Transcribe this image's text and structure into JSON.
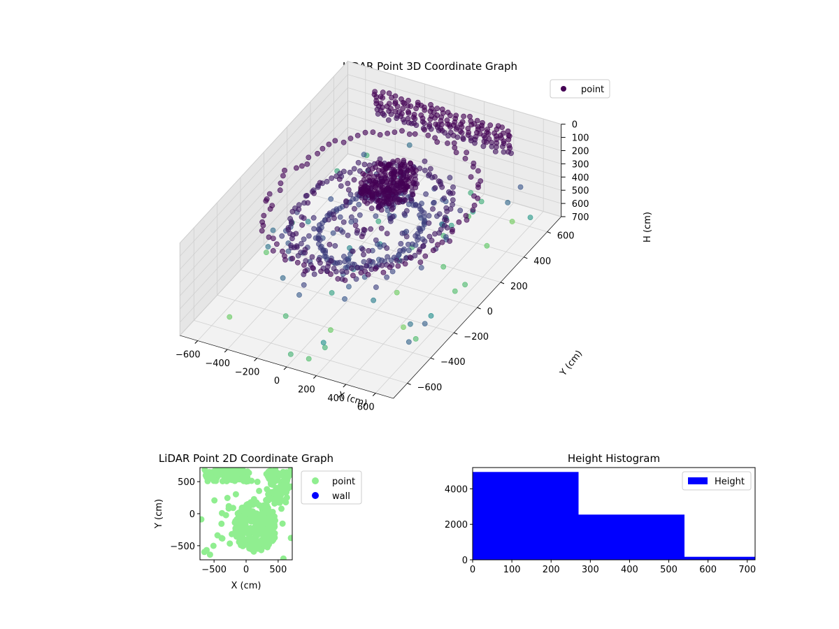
{
  "chart_data": [
    {
      "type": "scatter",
      "projection": "3d",
      "title": "LiDAR Point 3D Coordinate Graph",
      "xlabel": "X (cm)",
      "ylabel": "Y (cm)",
      "zlabel": "H (cm)",
      "xlim": [
        -720,
        720
      ],
      "ylim": [
        -720,
        720
      ],
      "zlim": [
        700,
        0
      ],
      "x_ticks": [
        -600,
        -400,
        -200,
        0,
        200,
        400,
        600
      ],
      "y_ticks": [
        -600,
        -400,
        -200,
        0,
        200,
        400,
        600
      ],
      "z_ticks": [
        0,
        100,
        200,
        300,
        400,
        500,
        600,
        700
      ],
      "colormap": "viridis (by height)",
      "legend": {
        "position": "top-right",
        "entries": [
          {
            "name": "point",
            "color": "#440154"
          }
        ]
      },
      "grid": true,
      "description_data": {
        "rings": [
          {
            "radius": 600,
            "height": 150
          },
          {
            "radius": 450,
            "height": 250
          },
          {
            "radius": 300,
            "height": 350
          }
        ],
        "core": {
          "x": 0,
          "y": 150,
          "height": 80
        }
      }
    },
    {
      "type": "scatter",
      "title": "LiDAR Point 2D Coordinate Graph",
      "xlabel": "X (cm)",
      "ylabel": "Y (cm)",
      "xlim": [
        -720,
        720
      ],
      "ylim": [
        -720,
        720
      ],
      "x_ticks": [
        -500,
        0,
        500
      ],
      "y_ticks": [
        -500,
        0,
        500
      ],
      "legend": {
        "position": "outside-right",
        "entries": [
          {
            "name": "point",
            "color": "#90ee90"
          },
          {
            "name": "wall",
            "color": "#0000ff"
          }
        ]
      },
      "grid": false
    },
    {
      "type": "bar",
      "title": "Height Histogram",
      "xlabel": "",
      "ylabel": "",
      "bins": [
        [
          0,
          270
        ],
        [
          270,
          540
        ],
        [
          540,
          720
        ]
      ],
      "values": [
        4950,
        2550,
        170
      ],
      "xlim": [
        0,
        720
      ],
      "ylim": [
        0,
        5200
      ],
      "x_ticks": [
        0,
        100,
        200,
        300,
        400,
        500,
        600,
        700
      ],
      "y_ticks": [
        0,
        2000,
        4000
      ],
      "color": "#0000ff",
      "legend": {
        "position": "top-right",
        "entries": [
          {
            "name": "Height",
            "color": "#0000ff"
          }
        ]
      },
      "grid": false
    }
  ]
}
